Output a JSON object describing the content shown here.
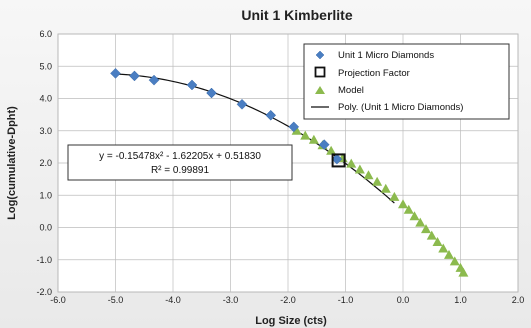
{
  "chart_data": {
    "type": "scatter",
    "title": "Unit 1 Kimberlite",
    "xlabel": "Log Size (cts)",
    "ylabel": "Log(cumulative-Dpht)",
    "xlim": [
      -6.0,
      2.0
    ],
    "ylim": [
      -2.0,
      6.0
    ],
    "x_ticks": [
      "-6.0",
      "-5.0",
      "-4.0",
      "-3.0",
      "-2.0",
      "-1.0",
      "0.0",
      "1.0",
      "2.0"
    ],
    "y_ticks": [
      "6.0",
      "5.0",
      "4.0",
      "3.0",
      "2.0",
      "1.0",
      "0.0",
      "-1.0",
      "-2.0"
    ],
    "grid": true,
    "legend_position": "top-right",
    "series": [
      {
        "name": "Unit 1 Micro Diamonds",
        "marker": "diamond",
        "color": "#4a7ec2",
        "points": [
          [
            -5.0,
            4.78
          ],
          [
            -4.67,
            4.7
          ],
          [
            -4.33,
            4.57
          ],
          [
            -3.67,
            4.42
          ],
          [
            -3.33,
            4.17
          ],
          [
            -2.8,
            3.82
          ],
          [
            -2.3,
            3.48
          ],
          [
            -1.9,
            3.12
          ],
          [
            -1.37,
            2.57
          ],
          [
            -1.15,
            2.12
          ]
        ]
      },
      {
        "name": "Projection Factor",
        "marker": "open-square",
        "color": "#111111",
        "points": [
          [
            -1.12,
            2.08
          ]
        ]
      },
      {
        "name": "Model",
        "marker": "triangle",
        "color": "#8cba4e",
        "points": [
          [
            -1.85,
            3.0
          ],
          [
            -1.7,
            2.85
          ],
          [
            -1.55,
            2.72
          ],
          [
            -1.4,
            2.55
          ],
          [
            -1.25,
            2.38
          ],
          [
            -1.05,
            2.15
          ],
          [
            -0.9,
            1.98
          ],
          [
            -0.75,
            1.8
          ],
          [
            -0.6,
            1.62
          ],
          [
            -0.45,
            1.42
          ],
          [
            -0.3,
            1.2
          ],
          [
            -0.15,
            0.95
          ],
          [
            0.0,
            0.72
          ],
          [
            0.1,
            0.55
          ],
          [
            0.2,
            0.35
          ],
          [
            0.3,
            0.15
          ],
          [
            0.4,
            -0.05
          ],
          [
            0.5,
            -0.25
          ],
          [
            0.6,
            -0.45
          ],
          [
            0.7,
            -0.65
          ],
          [
            0.8,
            -0.85
          ],
          [
            0.9,
            -1.05
          ],
          [
            1.0,
            -1.25
          ],
          [
            1.05,
            -1.4
          ]
        ]
      },
      {
        "name": "Poly. (Unit 1 Micro Diamonds)",
        "type": "line",
        "color": "#111111",
        "equation": {
          "a": -0.15478,
          "b": -1.62205,
          "c": 0.5183
        },
        "x_range": [
          -5.0,
          -0.15
        ]
      }
    ],
    "annotation": {
      "equation": "y = -0.15478x² - 1.62205x + 0.51830",
      "r2": "R² = 0.99891"
    }
  }
}
